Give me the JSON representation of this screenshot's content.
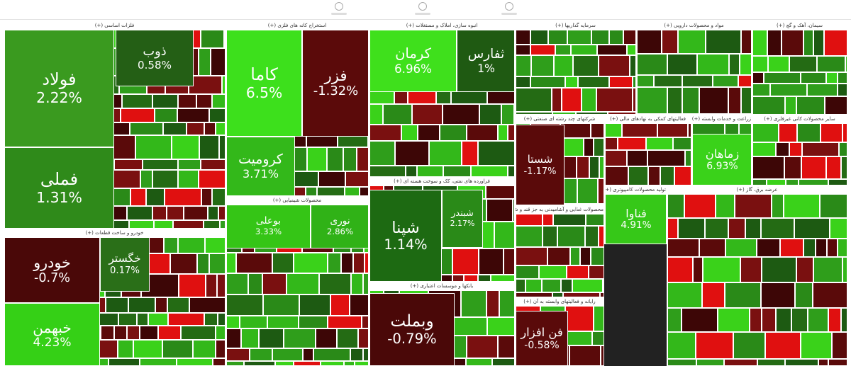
{
  "sectors": [
    {
      "title": "فلزات اساسی (+)",
      "tiles": [
        {
          "label": "فولاد",
          "change": "2.22%",
          "color": "#3a9a1f"
        },
        {
          "label": "فملی",
          "change": "1.31%",
          "color": "#2f8a1a"
        },
        {
          "label": "ذوب",
          "change": "0.58%",
          "color": "#245f15"
        }
      ]
    },
    {
      "title": "خودرو و ساخت قطعات (+)",
      "tiles": [
        {
          "label": "خودرو",
          "change": "-0.7%",
          "color": "#4a0808"
        },
        {
          "label": "خبهمن",
          "change": "4.23%",
          "color": "#35d016"
        },
        {
          "label": "خگستر",
          "change": "0.17%",
          "color": "#2a6f18"
        }
      ]
    },
    {
      "title": "استخراج کانه های فلزی (+)",
      "tiles": [
        {
          "label": "کاما",
          "change": "6.5%",
          "color": "#3de01c"
        },
        {
          "label": "فزر",
          "change": "-1.32%",
          "color": "#5b0a0a"
        },
        {
          "label": "کرومیت",
          "change": "3.71%",
          "color": "#33b81a"
        }
      ]
    },
    {
      "title": "محصولات شیمیایی (+)",
      "tiles": [
        {
          "label": "بوعلی",
          "change": "3.33%",
          "color": "#35c516"
        },
        {
          "label": "نوری",
          "change": "2.86%",
          "color": "#30b217"
        }
      ]
    },
    {
      "title": "انبوه سازی، املاک و مستغلات (+)",
      "tiles": [
        {
          "label": "کرمان",
          "change": "6.96%",
          "color": "#3fe01c"
        },
        {
          "label": "ثفارس",
          "change": "1%",
          "color": "#1f5a12"
        }
      ]
    },
    {
      "title": "فراورده های نفتی، کک و سوخت هسته ای (+)",
      "tiles": [
        {
          "label": "شپنا",
          "change": "1.14%",
          "color": "#1d6a12"
        },
        {
          "label": "شبندر",
          "change": "2.17%",
          "color": "#2a8a18"
        }
      ]
    },
    {
      "title": "بانکها و موسسات اعتباری (+)",
      "tiles": [
        {
          "label": "وبملت",
          "change": "-0.79%",
          "color": "#4a0808"
        }
      ]
    },
    {
      "title": "سرمایه گذاریها (+)",
      "tiles": []
    },
    {
      "title": "مواد و محصولات دارویی (+)",
      "tiles": []
    },
    {
      "title": "سیمان، آهک و گچ (+)",
      "tiles": []
    },
    {
      "title": "شرکتهای چند رشته ای صنعتی (+)",
      "tiles": [
        {
          "label": "شستا",
          "change": "-1.17%",
          "color": "#5a0a0a"
        }
      ]
    },
    {
      "title": "فعالیتهای کمکی به نهادهای مالی (+)",
      "tiles": []
    },
    {
      "title": "زراعت و خدمات وابسته (+)",
      "tiles": [
        {
          "label": "زماهان",
          "change": "6.93%",
          "color": "#3ad21a"
        }
      ]
    },
    {
      "title": "سایر محصولات کانی غیرفلزی (+)",
      "tiles": []
    },
    {
      "title": "محصولات غذایی و آشامیدنی به جز قند و شکر (+)",
      "tiles": []
    },
    {
      "title": "تولید محصولات کامپیوتری (+)",
      "tiles": [
        {
          "label": "فناوا",
          "change": "4.91%",
          "color": "#36c818"
        }
      ]
    },
    {
      "title": "رایانه و فعالیتهای وابسته به آن (+)",
      "tiles": [
        {
          "label": "فن افزار",
          "change": "-0.58%",
          "color": "#5a0a0a"
        }
      ]
    },
    {
      "title": "عرضه برق، گاز (+)",
      "tiles": []
    }
  ]
}
